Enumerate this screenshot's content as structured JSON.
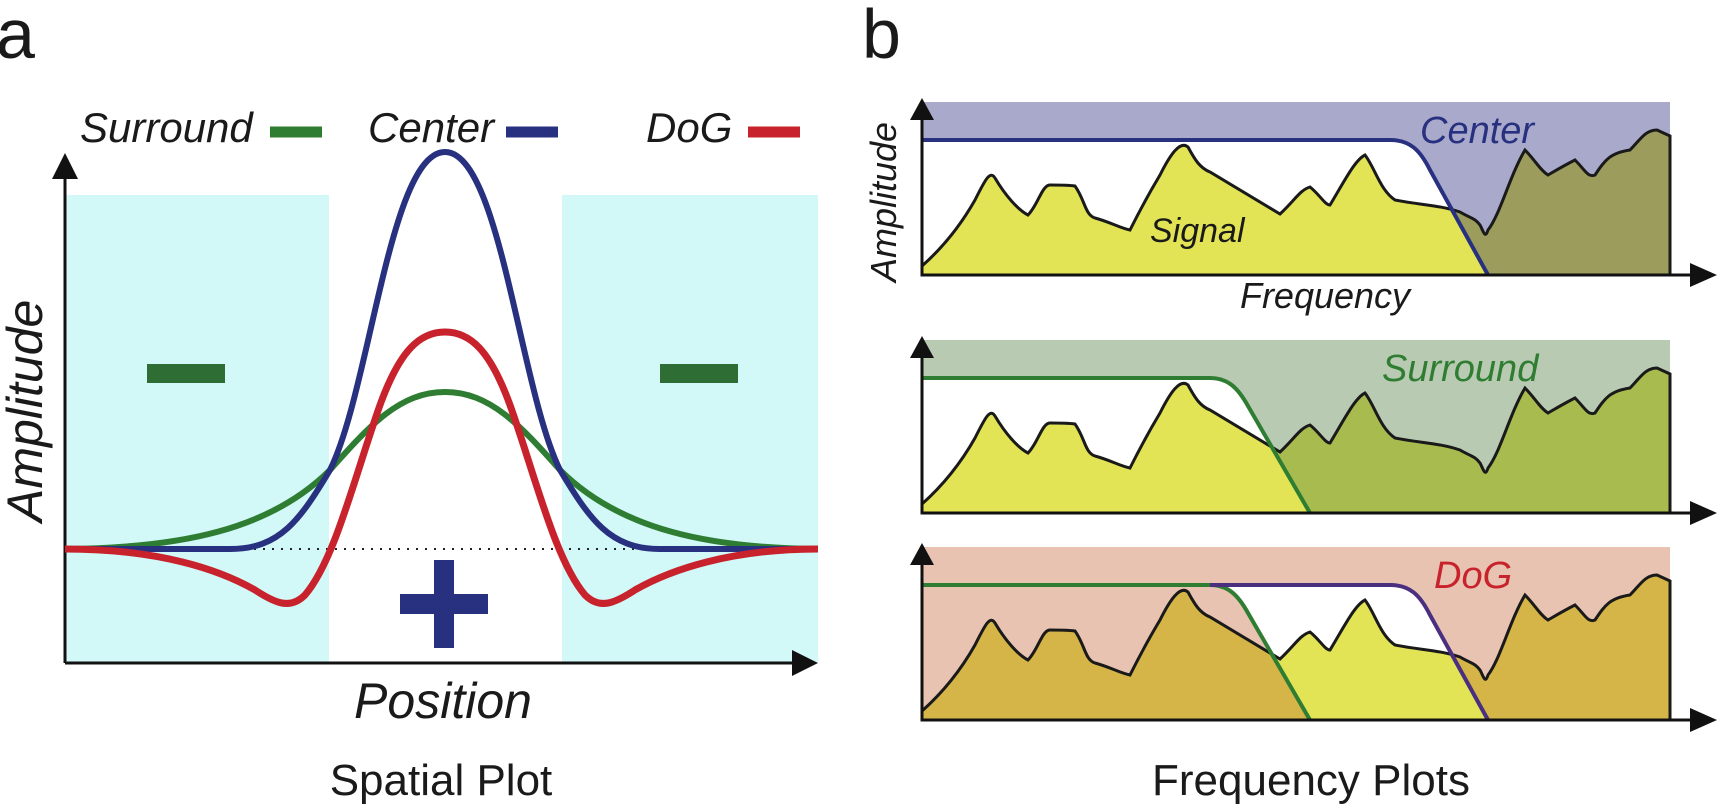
{
  "panel_a": {
    "letter": "a",
    "legend": {
      "surround": "Surround",
      "center": "Center",
      "dog": "DoG"
    },
    "y_label": "Amplitude",
    "x_label": "Position",
    "caption": "Spatial Plot",
    "minus_sign": "−",
    "plus_sign": "+"
  },
  "panel_b": {
    "letter": "b",
    "y_label": "Amplitude",
    "x_label": "Frequency",
    "signal_label": "Signal",
    "plots": [
      {
        "filter": "Center"
      },
      {
        "filter": "Surround"
      },
      {
        "filter": "DoG"
      }
    ],
    "caption": "Frequency Plots"
  },
  "colors": {
    "surround": "#2e7d32",
    "center": "#283080",
    "dog": "#c8232c",
    "cyan_band": "#d2f8f8",
    "signal": "#e2e455",
    "center_fill": "#a9a9cc",
    "surround_fill": "#b8cbb2",
    "dog_fill": "#e8c3b1"
  }
}
